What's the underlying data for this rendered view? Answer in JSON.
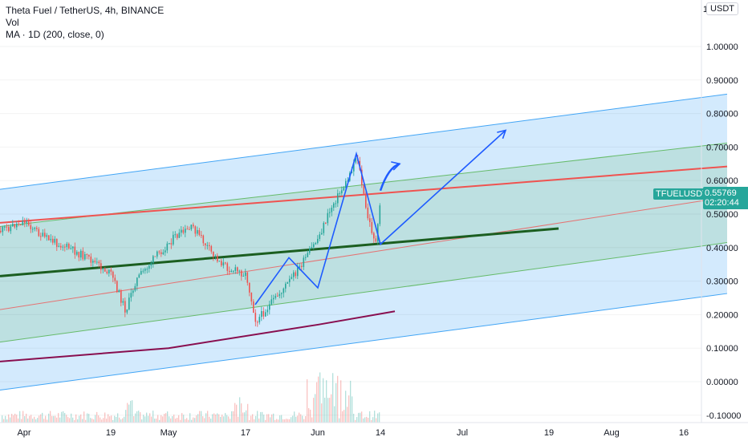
{
  "header": {
    "title": "Theta Fuel / TetherUS, 4h, BINANCE",
    "volume_label": "Vol",
    "ma_label": "MA · 1D (200, close, 0)"
  },
  "currency_button": "USDT",
  "scale_one_label": "1",
  "last_price": {
    "symbol": "TFUELUSDT",
    "price": "0.55769",
    "countdown": "02:20:44"
  },
  "colors": {
    "up": "#26a69a",
    "down": "#ef5350",
    "channel_blue": "#2196f3",
    "channel_green": "#4caf50",
    "support_line": "#1b5e20",
    "ma": "#880e4f",
    "drawing": "#1e5bff"
  },
  "chart_data": {
    "type": "candlestick",
    "y_axis": {
      "range": [
        -0.12,
        1.02
      ],
      "ticks": [
        "1.00000",
        "0.90000",
        "0.80000",
        "0.70000",
        "0.60000",
        "0.50000",
        "0.40000",
        "0.30000",
        "0.20000",
        "0.10000",
        "0.00000",
        "-0.10000"
      ]
    },
    "x_axis": {
      "ticks": [
        "Apr",
        "19",
        "May",
        "17",
        "Jun",
        "14",
        "Jul",
        "19",
        "Aug",
        "16"
      ]
    },
    "price_path": [
      [
        "Mar 27",
        0.45
      ],
      [
        "Apr 1",
        0.48
      ],
      [
        "Apr 5",
        0.43
      ],
      [
        "Apr 10",
        0.4
      ],
      [
        "Apr 15",
        0.36
      ],
      [
        "Apr 19",
        0.32
      ],
      [
        "Apr 22",
        0.21
      ],
      [
        "Apr 24",
        0.3
      ],
      [
        "Apr 28",
        0.37
      ],
      [
        "May 2",
        0.43
      ],
      [
        "May 6",
        0.46
      ],
      [
        "May 10",
        0.38
      ],
      [
        "May 13",
        0.34
      ],
      [
        "May 17",
        0.32
      ],
      [
        "May 19",
        0.18
      ],
      [
        "May 22",
        0.23
      ],
      [
        "May 26",
        0.3
      ],
      [
        "May 29",
        0.36
      ],
      [
        "Jun 1",
        0.43
      ],
      [
        "Jun 4",
        0.53
      ],
      [
        "Jun 7",
        0.6
      ],
      [
        "Jun 9",
        0.68
      ],
      [
        "Jun 11",
        0.5
      ],
      [
        "Jun 13",
        0.41
      ],
      [
        "Jun 14",
        0.56
      ]
    ],
    "ma_1d_200": [
      [
        "Mar 27",
        0.06
      ],
      [
        "May 1",
        0.1
      ],
      [
        "Jun 1",
        0.17
      ],
      [
        "Jun 17",
        0.21
      ]
    ],
    "channel_blue": {
      "upper": [
        [
          "Mar 27",
          0.574
        ],
        [
          "Aug 25",
          0.858
        ]
      ],
      "lower": [
        [
          "Mar 27",
          -0.025
        ],
        [
          "Aug 25",
          0.263
        ]
      ]
    },
    "channel_green": {
      "upper": [
        [
          "Mar 27",
          0.463
        ],
        [
          "Aug 25",
          0.712
        ]
      ],
      "middle": [
        [
          "Mar 27",
          0.215
        ],
        [
          "Aug 25",
          0.551
        ]
      ],
      "lower": [
        [
          "Mar 27",
          0.118
        ],
        [
          "Aug 25",
          0.415
        ]
      ]
    },
    "resistance_line": [
      [
        "Mar 27",
        0.474
      ],
      [
        "Aug 25",
        0.642
      ]
    ],
    "support_line": [
      [
        "Mar 27",
        0.315
      ],
      [
        "Jul 21",
        0.457
      ]
    ],
    "projection_path": [
      [
        "May 19",
        0.23
      ],
      [
        "May 26",
        0.37
      ],
      [
        "Jun 1",
        0.28
      ],
      [
        "Jun 9",
        0.68
      ],
      [
        "Jun 14",
        0.41
      ],
      [
        "Jul 10",
        0.75
      ]
    ],
    "small_arrow": [
      [
        "Jun 14",
        0.57
      ],
      [
        "Jun 18",
        0.65
      ]
    ]
  }
}
